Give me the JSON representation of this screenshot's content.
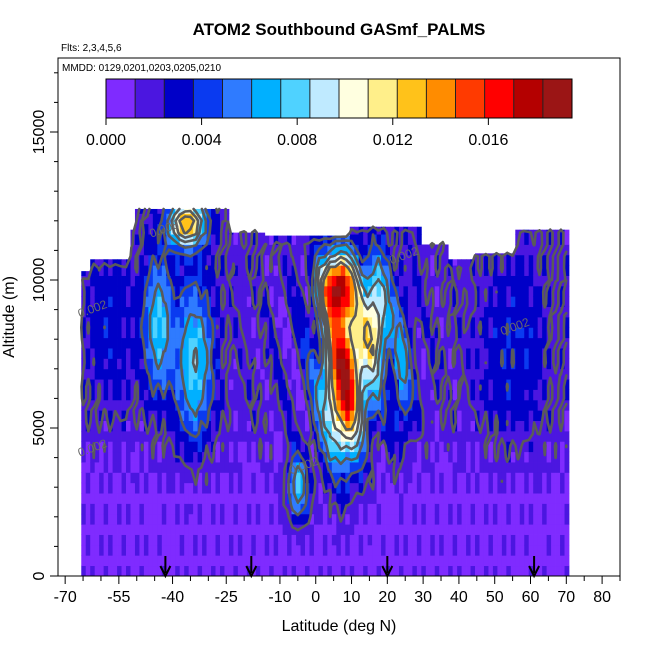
{
  "chart_data": {
    "type": "heatmap",
    "title": "ATOM2 Southbound GASmf_PALMS",
    "subtitle_flights": "Flts: 2,3,4,5,6",
    "subtitle_dates": "MMDD: 0129,0201,0203,0205,0210",
    "xlabel": "Latitude (deg N)",
    "ylabel": "Altitude (m)",
    "xlim": [
      -72,
      85
    ],
    "ylim": [
      0,
      17500
    ],
    "x_ticks": [
      -70,
      -55,
      -40,
      -25,
      -10,
      0,
      10,
      20,
      30,
      40,
      50,
      60,
      70,
      80
    ],
    "y_ticks": [
      0,
      5000,
      10000,
      15000
    ],
    "colorbar": {
      "range": [
        0,
        0.0195
      ],
      "tick_values": [
        0,
        0.004,
        0.008,
        0.012,
        0.016
      ],
      "tick_labels": [
        "0.000",
        "0.004",
        "0.008",
        "0.012",
        "0.016"
      ],
      "colors": [
        "#7f2bff",
        "#4b16e0",
        "#0000c8",
        "#0a3af0",
        "#2f7bff",
        "#00b0ff",
        "#4fd2ff",
        "#bfeaff",
        "#ffffe0",
        "#ffef8a",
        "#ffc21a",
        "#ff8c00",
        "#ff3a00",
        "#ff0000",
        "#b40000",
        "#9b1515"
      ]
    },
    "contour_labels": [
      {
        "text": "0.008",
        "x": -42,
        "y": 11600
      },
      {
        "text": "0.002",
        "x": -62,
        "y": 4200
      },
      {
        "text": "0.002",
        "x": 56,
        "y": 8300
      },
      {
        "text": "0.002",
        "x": 25,
        "y": 10700
      },
      {
        "text": "0.002",
        "x": -3,
        "y": 3600
      },
      {
        "text": "0.002",
        "x": -62,
        "y": 8900
      }
    ],
    "flight_marker_latitudes": [
      -42,
      -18,
      20,
      61
    ],
    "grid": false,
    "legend_placement": "top"
  }
}
